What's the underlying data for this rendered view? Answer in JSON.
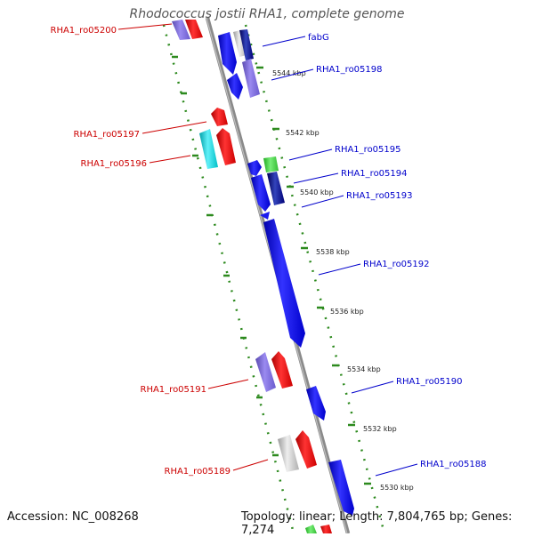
{
  "title": "Rhodococcus jostii RHA1, complete genome",
  "footer": {
    "accession": "Accession: NC_008268",
    "topology": "Topology: linear; Length: 7,804,765 bp; Genes: 7,274"
  },
  "colors": {
    "backbone": "#8c8c8c",
    "dots": "#2d8a1e",
    "left_label": "#cc0000",
    "right_label": "#0000cc"
  },
  "scale_labels": [
    "5544 kbp",
    "5542 kbp",
    "5540 kbp",
    "5538 kbp",
    "5536 kbp",
    "5534 kbp",
    "5532 kbp",
    "5530 kbp"
  ],
  "left_labels": [
    "RHA1_ro05200",
    "RHA1_ro05197",
    "RHA1_ro05196",
    "RHA1_ro05191",
    "RHA1_ro05189"
  ],
  "right_labels": [
    "fabG",
    "RHA1_ro05198",
    "RHA1_ro05195",
    "RHA1_ro05194",
    "RHA1_ro05193",
    "RHA1_ro05192",
    "RHA1_ro05190",
    "RHA1_ro05188"
  ]
}
